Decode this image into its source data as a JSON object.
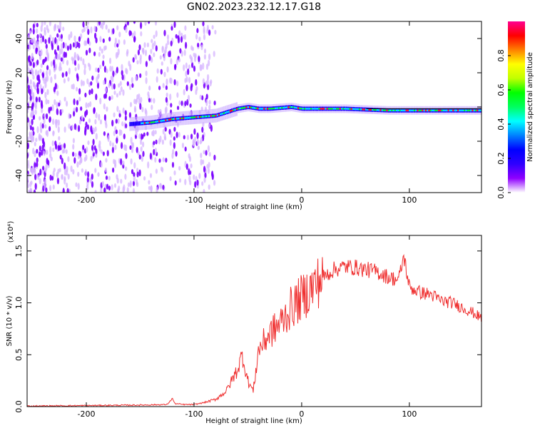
{
  "title": "GN02.2023.232.12.17.G18",
  "chart_data": [
    {
      "type": "heatmap",
      "xlabel": "Height of straight line (km)",
      "ylabel": "Frequency (Hz)",
      "xlim": [
        -255,
        167
      ],
      "ylim": [
        -50,
        50
      ],
      "xticks": [
        -200,
        -100,
        0,
        100
      ],
      "yticks": [
        -40,
        -20,
        0,
        20,
        40
      ],
      "colorbar": {
        "label": "Normalized spectral amplitude",
        "range": [
          0,
          1
        ],
        "ticks": [
          "0.0",
          "0.2",
          "0.4",
          "0.6",
          "0.8"
        ],
        "colors": [
          "#ffffff",
          "#8f00ff",
          "#2f00ff",
          "#0000ff",
          "#0080ff",
          "#00ffff",
          "#00ff60",
          "#00ff00",
          "#c0ff00",
          "#ffff00",
          "#ff8000",
          "#ff0000",
          "#ff0090"
        ]
      },
      "signal_track": {
        "x": [
          -160,
          -140,
          -120,
          -100,
          -80,
          -70,
          -60,
          -50,
          -40,
          -30,
          -20,
          -10,
          0,
          40,
          80,
          120,
          167
        ],
        "freq": [
          -10,
          -9,
          -7,
          -6,
          -5,
          -3,
          -1,
          0,
          -1,
          -1,
          -0.5,
          0,
          -1,
          -1,
          -2,
          -2,
          -2
        ]
      }
    },
    {
      "type": "line",
      "xlabel": "Height of straight line (km)",
      "ylabel": "SNR (10 * v/v)",
      "y_scale_label": "(x10⁴)",
      "xlim": [
        -255,
        167
      ],
      "ylim": [
        0,
        1.65
      ],
      "xticks": [
        -200,
        -100,
        0,
        100
      ],
      "yticks": [
        "0.0",
        "0.5",
        "1.0",
        "1.5"
      ],
      "series": [
        {
          "color": "#ef3030",
          "x": [
            -255,
            -200,
            -150,
            -125,
            -120,
            -118,
            -110,
            -100,
            -90,
            -80,
            -70,
            -60,
            -55,
            -50,
            -45,
            -40,
            -30,
            -20,
            -10,
            0,
            10,
            20,
            30,
            40,
            50,
            60,
            70,
            80,
            90,
            95,
            100,
            110,
            120,
            130,
            140,
            150,
            160,
            167
          ],
          "y": [
            0.005,
            0.01,
            0.015,
            0.02,
            0.08,
            0.03,
            0.02,
            0.02,
            0.04,
            0.07,
            0.15,
            0.35,
            0.5,
            0.25,
            0.15,
            0.55,
            0.7,
            0.8,
            0.95,
            1.05,
            1.15,
            1.25,
            1.32,
            1.35,
            1.34,
            1.32,
            1.3,
            1.25,
            1.22,
            1.45,
            1.15,
            1.1,
            1.08,
            1.02,
            1.0,
            0.95,
            0.9,
            0.85
          ]
        }
      ]
    }
  ]
}
